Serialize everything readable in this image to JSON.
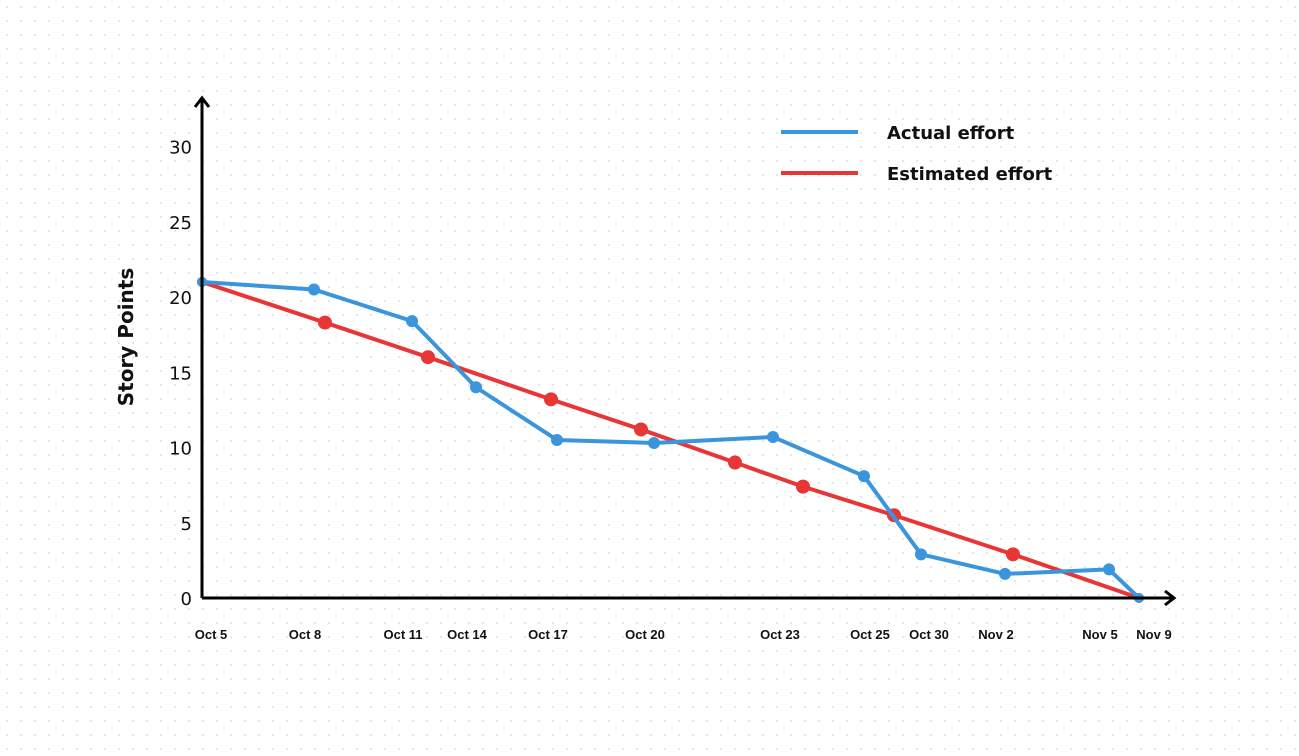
{
  "chart_data": {
    "type": "line",
    "title": "",
    "xlabel": "",
    "ylabel": "Story Points",
    "ylim": [
      0,
      32
    ],
    "yticks": [
      0,
      5,
      10,
      15,
      20,
      25,
      30
    ],
    "x_tick_labels": [
      "Oct 5",
      "Oct 8",
      "Oct 11",
      "Oct 14",
      "Oct 17",
      "Oct 20",
      "Oct 23",
      "Oct 25",
      "Oct 30",
      "Nov 2",
      "Nov 5",
      "Nov 9"
    ],
    "grid": false,
    "legend_position": "top-right",
    "series": [
      {
        "name": "Actual effort",
        "color": "#3a95dc",
        "points": [
          {
            "x": "Oct 5",
            "y": 21.0
          },
          {
            "x": "Oct 8",
            "y": 20.5
          },
          {
            "x": "Oct 11",
            "y": 18.4
          },
          {
            "x": "Oct 14",
            "y": 14.0
          },
          {
            "x": "Oct 17",
            "y": 10.5
          },
          {
            "x": "Oct 20",
            "y": 10.3
          },
          {
            "x": "Oct 23",
            "y": 10.7
          },
          {
            "x": "Oct 25",
            "y": 8.1
          },
          {
            "x": "Oct 30",
            "y": 2.9
          },
          {
            "x": "Nov 2",
            "y": 1.6
          },
          {
            "x": "Nov 5",
            "y": 1.9
          },
          {
            "x": "Nov 9",
            "y": 0.0
          }
        ]
      },
      {
        "name": "Estimated effort",
        "color": "#e83535",
        "points": [
          {
            "x": "Oct 5",
            "y": 21.0
          },
          {
            "x": "Oct 8",
            "y": 18.3
          },
          {
            "x": "Oct 11",
            "y": 16.0
          },
          {
            "x": "Oct 17",
            "y": 13.2
          },
          {
            "x": "Oct 20",
            "y": 11.2
          },
          {
            "x": "Oct 23",
            "y": 9.0
          },
          {
            "x": "Oct 23",
            "y": 7.4
          },
          {
            "x": "Oct 25",
            "y": 5.5
          },
          {
            "x": "Nov 2",
            "y": 2.9
          },
          {
            "x": "Nov 9",
            "y": 0.0
          }
        ]
      }
    ]
  }
}
